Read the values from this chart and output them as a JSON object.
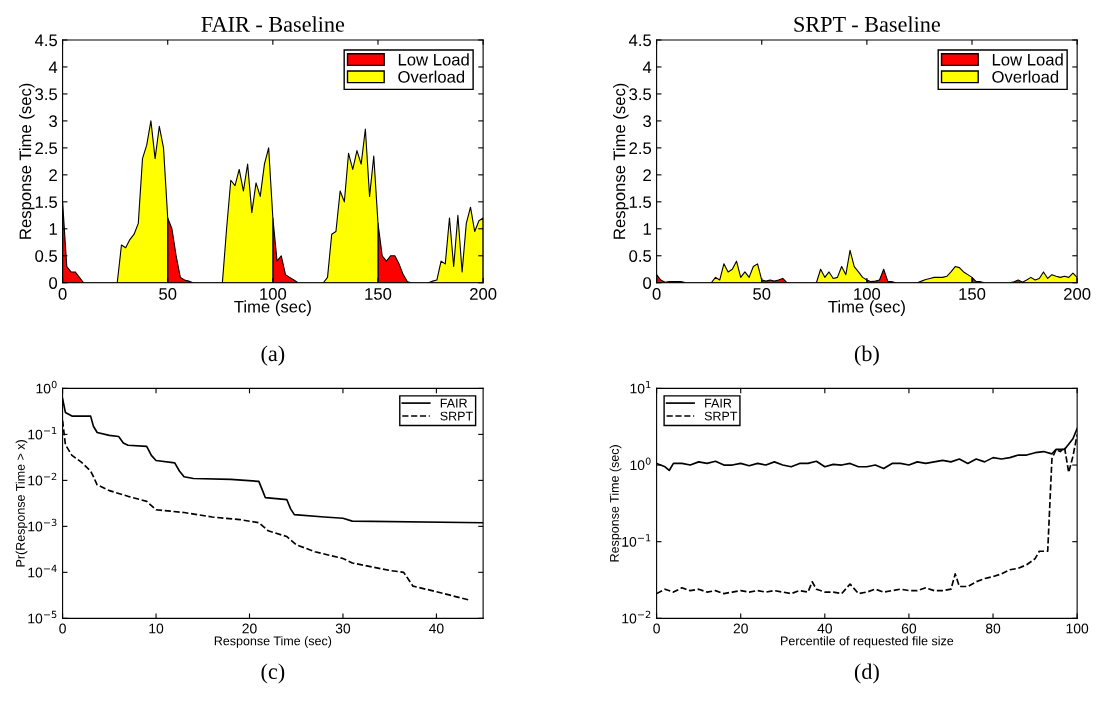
{
  "chart_data": [
    {
      "type": "area",
      "title": "FAIR - Baseline",
      "xlabel": "Time (sec)",
      "ylabel": "Response Time (sec)",
      "annotations": [
        "(a)"
      ],
      "legend": "top right",
      "grid": false,
      "x": [
        0,
        2,
        4,
        6,
        8,
        10,
        12,
        14,
        16,
        18,
        20,
        22,
        24,
        26,
        28,
        30,
        32,
        34,
        36,
        38,
        40,
        42,
        44,
        46,
        48,
        50,
        52,
        54,
        56,
        58,
        60,
        62,
        64,
        66,
        68,
        70,
        72,
        74,
        76,
        78,
        80,
        82,
        84,
        86,
        88,
        90,
        92,
        94,
        96,
        98,
        100,
        102,
        104,
        106,
        108,
        110,
        112,
        114,
        116,
        118,
        120,
        122,
        124,
        126,
        128,
        130,
        132,
        134,
        136,
        138,
        140,
        142,
        144,
        146,
        148,
        150,
        152,
        154,
        156,
        158,
        160,
        162,
        164,
        166,
        168,
        170,
        172,
        174,
        176,
        178,
        180,
        182,
        184,
        186,
        188,
        190,
        192,
        194,
        196,
        198,
        200
      ],
      "xlim": [
        0,
        200
      ],
      "xticks": [
        0,
        50,
        100,
        150,
        200
      ],
      "ylim": [
        0,
        4.5
      ],
      "yticks": [
        0,
        0.5,
        1,
        1.5,
        2,
        2.5,
        3,
        3.5,
        4,
        4.5
      ],
      "series": [
        {
          "name": "Low Load",
          "color": "#ff0000",
          "values": [
            1.5,
            0.3,
            0.2,
            0.2,
            0.1,
            0,
            0,
            0,
            0,
            0,
            0,
            0,
            0,
            0,
            null,
            null,
            null,
            null,
            null,
            null,
            null,
            null,
            null,
            null,
            null,
            1.2,
            1.0,
            0.5,
            0.1,
            0.05,
            0.03,
            0,
            0,
            0,
            0,
            0,
            0,
            0,
            0,
            null,
            null,
            null,
            null,
            null,
            null,
            null,
            null,
            null,
            null,
            null,
            1.2,
            0.4,
            0.5,
            0.15,
            0.1,
            0.05,
            0,
            0,
            0,
            0,
            0,
            0,
            0,
            null,
            null,
            null,
            null,
            null,
            null,
            null,
            null,
            null,
            null,
            null,
            null,
            1.1,
            0.5,
            0.4,
            0.5,
            0.5,
            0.35,
            0.15,
            0.02,
            0,
            0,
            0,
            0,
            0,
            null,
            null,
            null,
            null,
            null,
            null,
            null,
            null,
            null,
            null,
            null,
            null,
            null
          ]
        },
        {
          "name": "Overload",
          "color": "#ffff00",
          "values": [
            null,
            null,
            null,
            null,
            null,
            null,
            null,
            null,
            null,
            null,
            null,
            null,
            null,
            0,
            0.7,
            0.65,
            0.8,
            0.9,
            1.1,
            2.3,
            2.55,
            3.0,
            2.3,
            2.9,
            2.5,
            1.2,
            null,
            null,
            null,
            null,
            null,
            null,
            null,
            null,
            null,
            null,
            null,
            null,
            0,
            1.0,
            1.9,
            1.8,
            2.1,
            1.7,
            2.2,
            1.3,
            1.85,
            1.6,
            2.2,
            2.5,
            1.2,
            null,
            null,
            null,
            null,
            null,
            null,
            null,
            null,
            null,
            null,
            null,
            0,
            0.1,
            0.9,
            0.95,
            1.7,
            1.5,
            2.4,
            2.1,
            2.45,
            2.2,
            2.85,
            1.6,
            2.35,
            1.1,
            null,
            null,
            null,
            null,
            null,
            null,
            null,
            null,
            null,
            null,
            null,
            0,
            0.03,
            0.05,
            0.4,
            0.35,
            1.2,
            0.3,
            1.25,
            0.2,
            1.1,
            1.4,
            0.95,
            1.15,
            1.2
          ]
        }
      ]
    },
    {
      "type": "area",
      "title": "SRPT - Baseline",
      "xlabel": "Time (sec)",
      "ylabel": "Response Time (sec)",
      "annotations": [
        "(b)"
      ],
      "legend": "top right",
      "grid": false,
      "x": [
        0,
        2,
        4,
        6,
        8,
        10,
        12,
        14,
        16,
        18,
        20,
        22,
        24,
        26,
        28,
        30,
        32,
        34,
        36,
        38,
        40,
        42,
        44,
        46,
        48,
        50,
        52,
        54,
        56,
        58,
        60,
        62,
        64,
        66,
        68,
        70,
        72,
        74,
        76,
        78,
        80,
        82,
        84,
        86,
        88,
        90,
        92,
        94,
        96,
        98,
        100,
        102,
        104,
        106,
        108,
        110,
        112,
        114,
        116,
        118,
        120,
        122,
        124,
        126,
        128,
        130,
        132,
        134,
        136,
        138,
        140,
        142,
        144,
        146,
        148,
        150,
        152,
        154,
        156,
        158,
        160,
        162,
        164,
        166,
        168,
        170,
        172,
        174,
        176,
        178,
        180,
        182,
        184,
        186,
        188,
        190,
        192,
        194,
        196,
        198,
        200
      ],
      "xlim": [
        0,
        200
      ],
      "xticks": [
        0,
        50,
        100,
        150,
        200
      ],
      "ylim": [
        0,
        4.5
      ],
      "yticks": [
        0,
        0.5,
        1,
        1.5,
        2,
        2.5,
        3,
        3.5,
        4,
        4.5
      ],
      "series": [
        {
          "name": "Low Load",
          "color": "#ff0000",
          "values": [
            0.15,
            0.05,
            0.01,
            0.02,
            0.02,
            0.02,
            0.02,
            0,
            0,
            0,
            0,
            0,
            0,
            0,
            null,
            null,
            null,
            null,
            null,
            null,
            null,
            null,
            null,
            null,
            null,
            0.05,
            0.03,
            0.05,
            0.03,
            0.05,
            0.08,
            0,
            0,
            0,
            0,
            0,
            0,
            0,
            0,
            null,
            null,
            null,
            null,
            null,
            null,
            null,
            null,
            null,
            null,
            null,
            0.05,
            0.02,
            0.03,
            0.05,
            0.25,
            0.02,
            0.02,
            0,
            0,
            0,
            0,
            0,
            0,
            null,
            null,
            null,
            null,
            null,
            null,
            null,
            null,
            null,
            null,
            null,
            null,
            0.1,
            0.02,
            0.02,
            0,
            0,
            0,
            0,
            0,
            0,
            0,
            0.02,
            0.05,
            0.01,
            null,
            null,
            null,
            null,
            null,
            null,
            null,
            null,
            null,
            null,
            null,
            null,
            null
          ]
        },
        {
          "name": "Overload",
          "color": "#ffff00",
          "values": [
            null,
            null,
            null,
            null,
            null,
            null,
            null,
            null,
            null,
            null,
            null,
            null,
            null,
            0,
            0.1,
            0.05,
            0.35,
            0.2,
            0.25,
            0.4,
            0.1,
            0.2,
            0.1,
            0.3,
            0.35,
            0.05,
            null,
            null,
            null,
            null,
            null,
            null,
            null,
            null,
            null,
            null,
            null,
            null,
            0,
            0.25,
            0.1,
            0.2,
            0.08,
            0.1,
            0.3,
            0.15,
            0.6,
            0.3,
            0.2,
            0.1,
            0.05,
            null,
            null,
            null,
            null,
            null,
            null,
            null,
            null,
            null,
            null,
            null,
            0,
            0.03,
            0.06,
            0.08,
            0.1,
            0.1,
            0.1,
            0.12,
            0.2,
            0.3,
            0.28,
            0.2,
            0.15,
            0.1,
            null,
            null,
            null,
            null,
            null,
            null,
            null,
            null,
            null,
            null,
            null,
            0.01,
            0.05,
            0.1,
            0.05,
            0.08,
            0.2,
            0.08,
            0.15,
            0.12,
            0.1,
            0.12,
            0.1,
            0.18,
            0.1
          ]
        }
      ]
    },
    {
      "type": "line",
      "xlabel": "Response Time (sec)",
      "ylabel": "Pr(Response Time > x)",
      "annotations": [
        "(c)"
      ],
      "legend": "top right",
      "grid": false,
      "log": "y",
      "xlim": [
        0,
        45
      ],
      "xticks": [
        0,
        10,
        20,
        30,
        40
      ],
      "ylim": [
        1e-05,
        1
      ],
      "yticks": [
        {
          "value": 1e-05,
          "label": "10$^{−5}$"
        },
        {
          "value": 0.0001,
          "label": "10$^{−4}$"
        },
        {
          "value": 0.001,
          "label": "10$^{−3}$"
        },
        {
          "value": 0.01,
          "label": "10$^{−2}$"
        },
        {
          "value": 0.1,
          "label": "10$^{−1}$"
        },
        {
          "value": 1,
          "label": "10$^{0}$"
        }
      ],
      "series": [
        {
          "name": "FAIR",
          "color": "#000000",
          "line_style": "solid",
          "x": [
            0,
            0.3,
            1,
            3,
            3.3,
            3.7,
            5,
            6,
            6.5,
            7,
            9,
            9.5,
            10,
            12,
            12.5,
            13,
            14,
            18,
            21,
            21.4,
            21.7,
            24,
            24.4,
            24.8,
            28,
            30,
            31,
            45
          ],
          "values": [
            0.6,
            0.3,
            0.25,
            0.25,
            0.15,
            0.11,
            0.095,
            0.09,
            0.065,
            0.058,
            0.055,
            0.035,
            0.027,
            0.024,
            0.016,
            0.012,
            0.011,
            0.0105,
            0.0095,
            0.006,
            0.0042,
            0.0038,
            0.0024,
            0.0018,
            0.0016,
            0.0015,
            0.0013,
            0.0012
          ]
        },
        {
          "name": "SRPT",
          "color": "#000000",
          "line_style": "dashed",
          "x": [
            0,
            0.3,
            1,
            2,
            3,
            3.3,
            3.7,
            5,
            7,
            9,
            10,
            13,
            16,
            19,
            21,
            22,
            24,
            25,
            27,
            30,
            31,
            35,
            36.5,
            37.5,
            40,
            43.5
          ],
          "values": [
            0.2,
            0.06,
            0.035,
            0.025,
            0.016,
            0.012,
            0.008,
            0.006,
            0.0045,
            0.0035,
            0.0023,
            0.002,
            0.0016,
            0.0014,
            0.0012,
            0.0008,
            0.0006,
            0.0004,
            0.00028,
            0.0002,
            0.00016,
            0.00011,
            0.0001,
            5e-05,
            3.8e-05,
            2.5e-05
          ]
        }
      ]
    },
    {
      "type": "line",
      "xlabel": "Percentile of requested file size",
      "ylabel": "Response Time (sec)",
      "annotations": [
        "(d)"
      ],
      "legend": "top left",
      "grid": false,
      "log": "y",
      "xlim": [
        0,
        100
      ],
      "xticks": [
        0,
        20,
        40,
        60,
        80,
        100
      ],
      "ylim": [
        0.01,
        10
      ],
      "yticks": [
        {
          "value": 0.01,
          "label": "10$^{−2}$"
        },
        {
          "value": 0.1,
          "label": "10$^{−1}$"
        },
        {
          "value": 1,
          "label": "10$^{0}$"
        },
        {
          "value": 10,
          "label": "10$^{1}$"
        }
      ],
      "series": [
        {
          "name": "FAIR",
          "color": "#000000",
          "line_style": "solid",
          "x": [
            0,
            2,
            3,
            4,
            6,
            8,
            10,
            12,
            14,
            16,
            18,
            20,
            22,
            24,
            26,
            28,
            30,
            32,
            34,
            36,
            38,
            40,
            42,
            44,
            46,
            48,
            50,
            52,
            54,
            56,
            58,
            60,
            62,
            64,
            66,
            68,
            70,
            72,
            74,
            76,
            78,
            80,
            82,
            84,
            86,
            88,
            90,
            92,
            94,
            95,
            97,
            99,
            100
          ],
          "values": [
            1.05,
            0.95,
            0.85,
            1.05,
            1.05,
            1.0,
            1.1,
            1.05,
            1.12,
            1.0,
            1.0,
            1.05,
            0.98,
            1.05,
            1.0,
            1.1,
            1.0,
            0.95,
            1.05,
            1.05,
            1.12,
            0.95,
            1.02,
            1.0,
            1.05,
            0.95,
            0.95,
            1.0,
            0.9,
            1.05,
            1.05,
            1.0,
            1.1,
            1.05,
            1.1,
            1.15,
            1.1,
            1.2,
            1.05,
            1.2,
            1.1,
            1.25,
            1.2,
            1.25,
            1.35,
            1.35,
            1.45,
            1.5,
            1.4,
            1.6,
            1.6,
            2.2,
            3.0
          ]
        },
        {
          "name": "SRPT",
          "color": "#000000",
          "line_style": "dashed",
          "x": [
            0,
            2,
            4,
            6,
            8,
            10,
            12,
            14,
            16,
            18,
            20,
            22,
            24,
            26,
            28,
            30,
            32,
            34,
            36,
            37,
            38,
            40,
            42,
            44,
            46,
            48,
            50,
            52,
            54,
            56,
            58,
            60,
            62,
            64,
            66,
            68,
            70,
            71,
            72,
            74,
            76,
            78,
            80,
            82,
            84,
            86,
            88,
            90,
            91,
            93,
            94,
            95,
            96,
            97,
            98,
            99,
            100
          ],
          "values": [
            0.021,
            0.024,
            0.022,
            0.025,
            0.023,
            0.024,
            0.022,
            0.023,
            0.021,
            0.022,
            0.023,
            0.022,
            0.023,
            0.022,
            0.023,
            0.022,
            0.021,
            0.023,
            0.022,
            0.03,
            0.024,
            0.022,
            0.022,
            0.021,
            0.028,
            0.021,
            0.022,
            0.024,
            0.022,
            0.023,
            0.024,
            0.023,
            0.023,
            0.025,
            0.023,
            0.023,
            0.024,
            0.038,
            0.026,
            0.026,
            0.03,
            0.033,
            0.035,
            0.038,
            0.043,
            0.045,
            0.05,
            0.06,
            0.075,
            0.075,
            1.2,
            1.6,
            1.5,
            1.7,
            0.8,
            1.3,
            2.5
          ]
        }
      ]
    }
  ]
}
